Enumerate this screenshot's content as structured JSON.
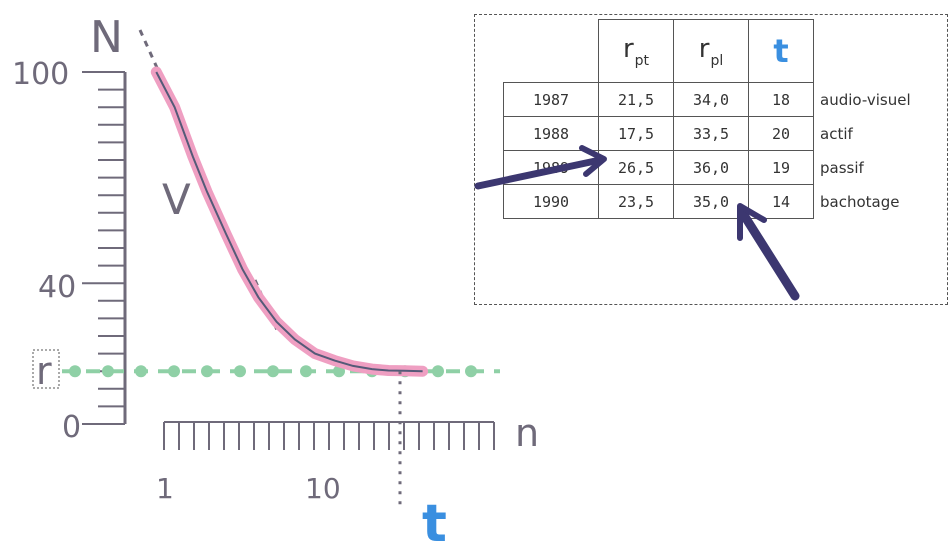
{
  "chart_data": {
    "type": "line",
    "y_axis_label": "N",
    "x_axis_label": "n",
    "y_ticks": [
      {
        "value": 0,
        "label": "0"
      },
      {
        "value": 40,
        "label": "40"
      },
      {
        "value": 100,
        "label": "100"
      }
    ],
    "x_ticks": [
      {
        "value": 1,
        "label": "1"
      },
      {
        "value": 10,
        "label": "10"
      }
    ],
    "x_scale": "log",
    "ylim": [
      0,
      100
    ],
    "curve_label": "V",
    "asymptote_label": "r",
    "asymptote_value": 15,
    "threshold_label": "t",
    "threshold_x": 42,
    "series": [
      {
        "x": [
          0.9,
          1.2,
          1.6,
          2,
          2.7,
          3.5,
          4.5,
          6,
          8,
          11,
          15,
          20,
          27,
          35,
          45,
          60
        ],
        "values": [
          100,
          90,
          76,
          66,
          54,
          44,
          36,
          29,
          24,
          20,
          18,
          16.5,
          15.6,
          15.2,
          15.1,
          15
        ]
      }
    ]
  },
  "table": {
    "headers": {
      "rpt_main": "r",
      "rpt_sub": "pt",
      "rpl_main": "r",
      "rpl_sub": "pl",
      "t": "t"
    },
    "rows": [
      {
        "year": "1987",
        "rpt": "21,5",
        "rpl": "34,0",
        "t": "18",
        "note": "audio-visuel"
      },
      {
        "year": "1988",
        "rpt": "17,5",
        "rpl": "33,5",
        "t": "20",
        "note": "actif"
      },
      {
        "year": "1989",
        "rpt": "26,5",
        "rpl": "36,0",
        "t": "19",
        "note": "passif"
      },
      {
        "year": "1990",
        "rpt": "23,5",
        "rpl": "35,0",
        "t": "14",
        "note": "bachotage"
      }
    ]
  },
  "colors": {
    "axis": "#6f6a7a",
    "curve": "#ef9fc2",
    "curve_line": "#555a78",
    "asymptote": "#8fd0a6",
    "t_marker": "#3a8fe0",
    "arrow": "#3c3770"
  }
}
